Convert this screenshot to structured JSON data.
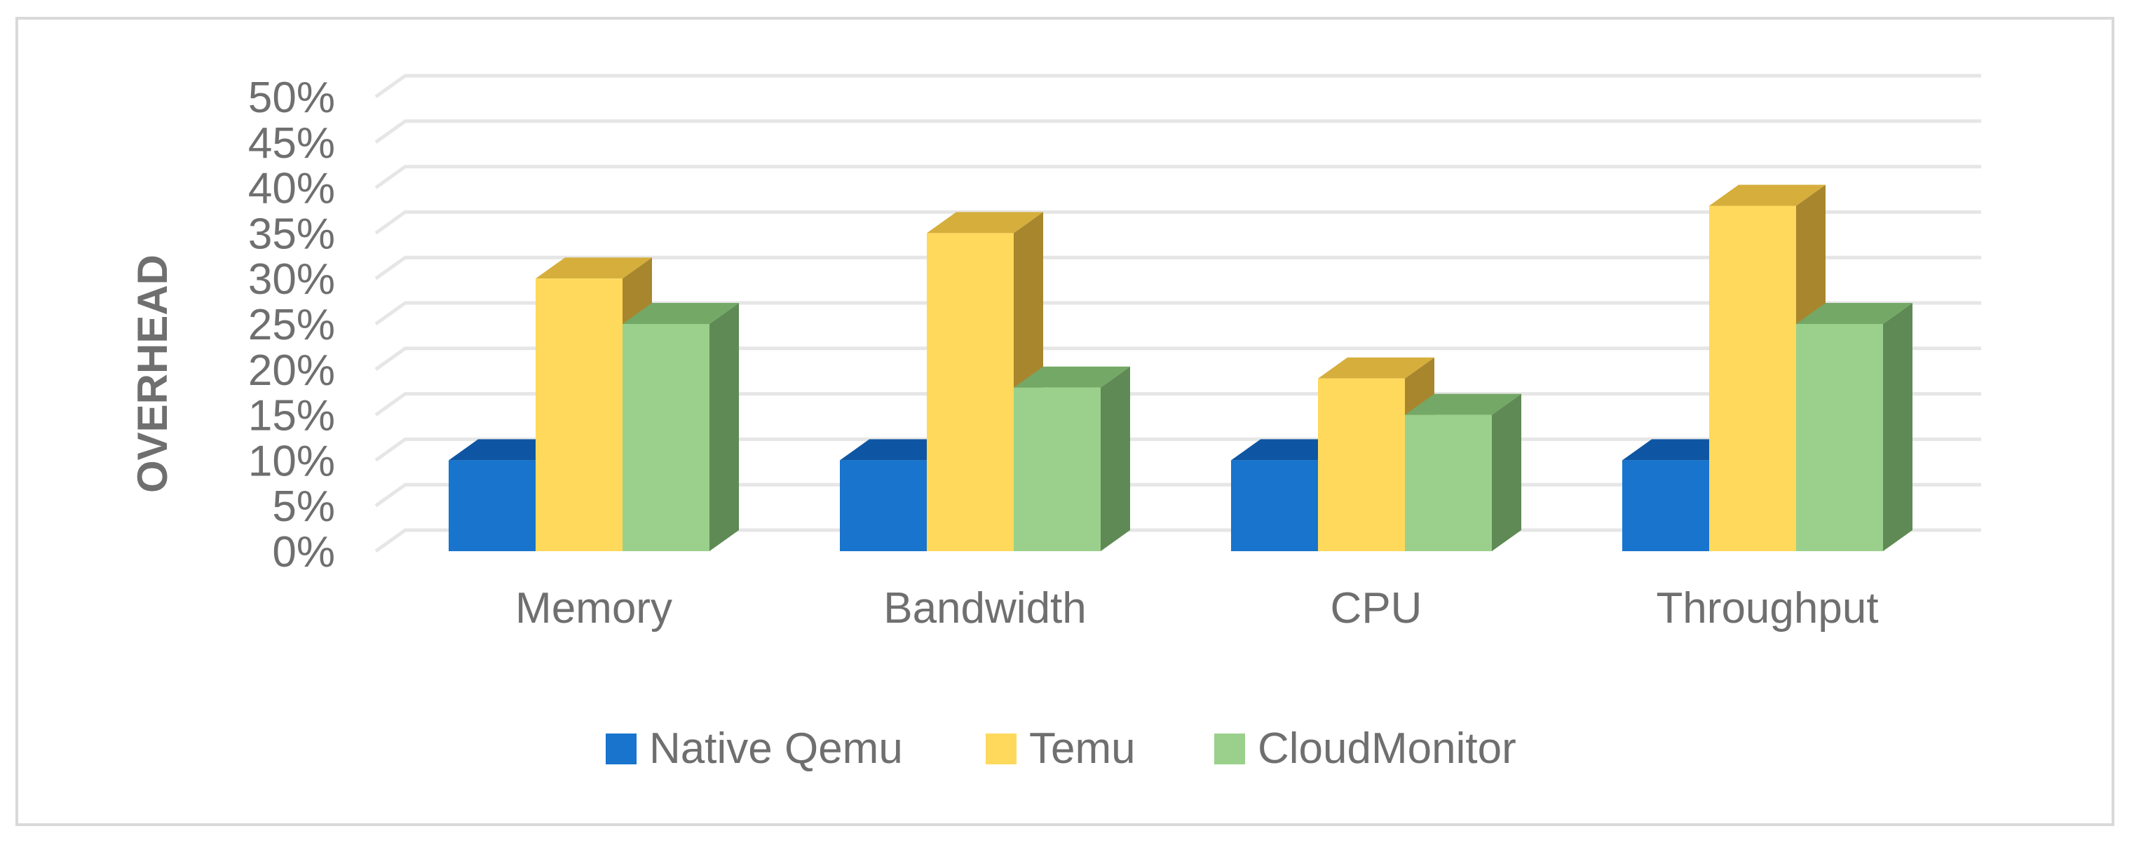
{
  "chart_data": {
    "type": "bar",
    "style": "3d-clustered-column",
    "title": "",
    "xlabel": "",
    "ylabel": "OVERHEAD",
    "ylim": [
      0,
      50
    ],
    "yticks": [
      "0%",
      "5%",
      "10%",
      "15%",
      "20%",
      "25%",
      "30%",
      "35%",
      "40%",
      "45%",
      "50%"
    ],
    "categories": [
      "Memory",
      "Bandwidth",
      "CPU",
      "Throughput"
    ],
    "series": [
      {
        "name": "Native Qemu",
        "values": [
          10,
          10,
          10,
          10
        ],
        "color": "#1874CD",
        "top": "#0E56A3",
        "side": "#0E4F96"
      },
      {
        "name": "Temu",
        "values": [
          30,
          35,
          19,
          38
        ],
        "color": "#FFD95C",
        "top": "#D6AE3C",
        "side": "#A8862E"
      },
      {
        "name": "CloudMonitor",
        "values": [
          25,
          18,
          15,
          25
        ],
        "color": "#9AD08B",
        "top": "#74A866",
        "side": "#5F8A55"
      }
    ],
    "grid": true,
    "legend": "bottom"
  }
}
